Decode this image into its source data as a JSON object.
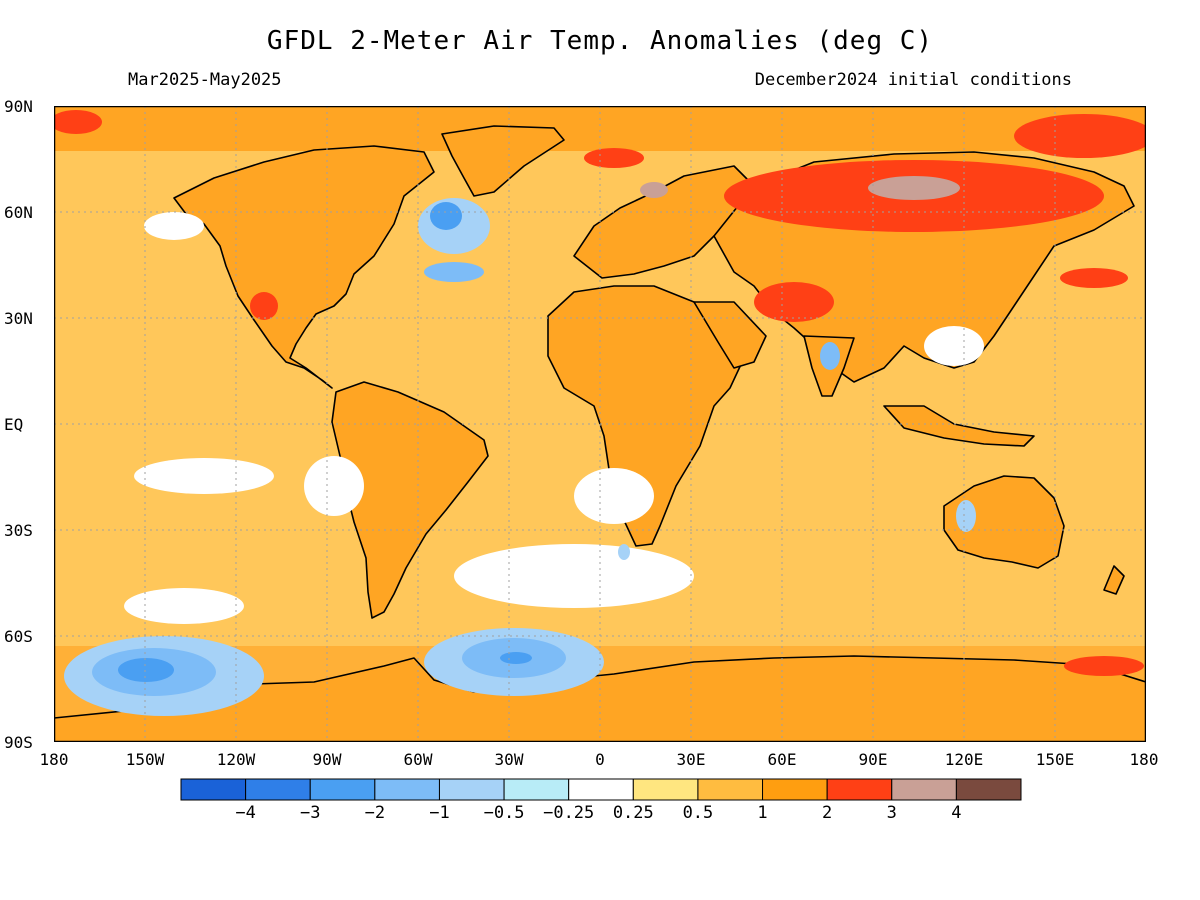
{
  "header": {
    "title": "GFDL 2-Meter Air Temp. Anomalies (deg C)",
    "season": "Mar2025-May2025",
    "init": "December2024 initial conditions"
  },
  "lat_labels": [
    "90N",
    "60N",
    "30N",
    "EQ",
    "30S",
    "60S",
    "90S"
  ],
  "lon_labels": [
    "180",
    "150W",
    "120W",
    "90W",
    "60W",
    "30W",
    "0",
    "30E",
    "60E",
    "90E",
    "120E",
    "150E",
    "180"
  ],
  "colorbar": {
    "colors": [
      "#1a62d8",
      "#2f7fe8",
      "#4a9ff2",
      "#7dbcf7",
      "#a6d2f7",
      "#b8ecf7",
      "#ffffff",
      "#ffe680",
      "#ffbc40",
      "#ff9e10",
      "#ff4015",
      "#c9a096",
      "#7a4a3e"
    ],
    "labels": [
      "-4",
      "-3",
      "-2",
      "-1",
      "-0.5",
      "-0.25",
      "0.25",
      "0.5",
      "1",
      "2",
      "3",
      "4"
    ]
  },
  "colors": {
    "ocean_base": "#ffc75a",
    "land_base": "#ffa523",
    "coastline": "#000000",
    "grid": "#a0a0a0"
  }
}
